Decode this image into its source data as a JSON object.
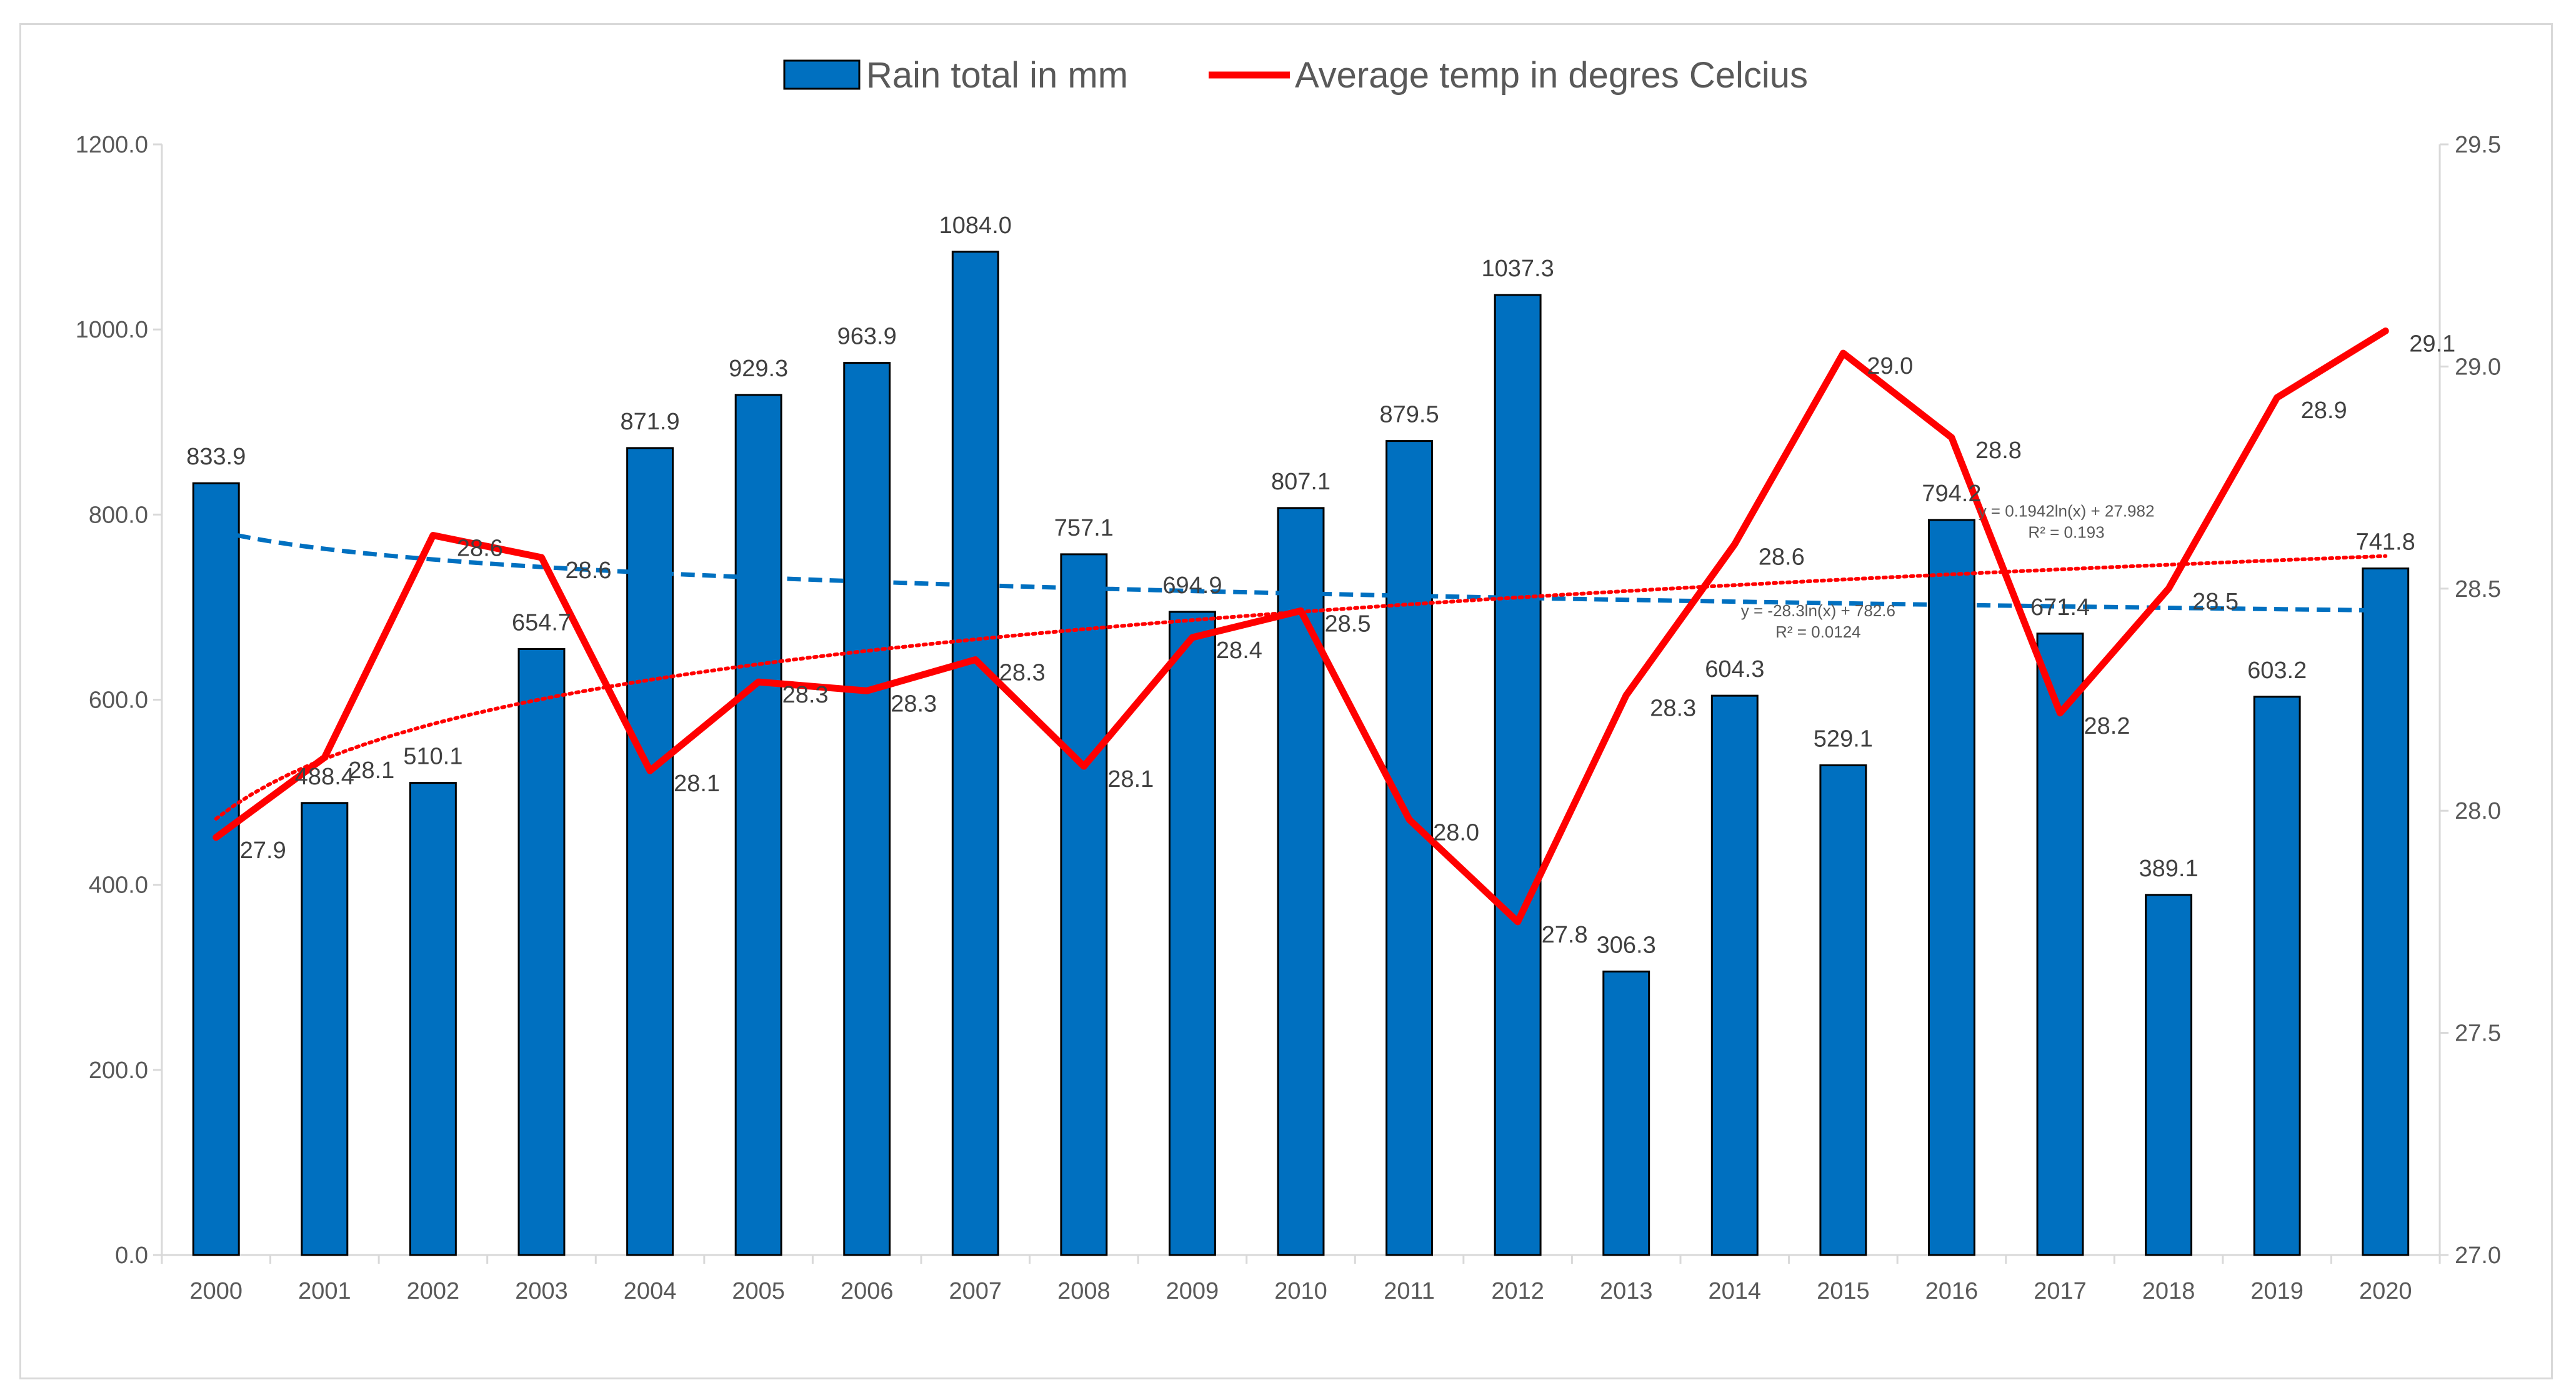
{
  "chart_data": {
    "type": "bar+line",
    "title": "",
    "categories": [
      "2000",
      "2001",
      "2002",
      "2003",
      "2004",
      "2005",
      "2006",
      "2007",
      "2008",
      "2009",
      "2010",
      "2011",
      "2012",
      "2013",
      "2014",
      "2015",
      "2016",
      "2017",
      "2018",
      "2019",
      "2020"
    ],
    "series": [
      {
        "name": "Rain total in mm",
        "type": "bar",
        "axis": "left",
        "color": "#0070c0",
        "values": [
          833.9,
          488.4,
          510.1,
          654.7,
          871.9,
          929.3,
          963.9,
          1084.0,
          757.1,
          694.9,
          807.1,
          879.5,
          1037.3,
          306.3,
          604.3,
          529.1,
          794.2,
          671.4,
          389.1,
          603.2,
          741.8
        ],
        "labels": [
          "833.9",
          "488.4",
          "510.1",
          "654.7",
          "871.9",
          "929.3",
          "963.9",
          "1084.0",
          "757.1",
          "694.9",
          "807.1",
          "879.5",
          "1037.3",
          "306.3",
          "604.3",
          "529.1",
          "794.2",
          "671.4",
          "389.1",
          "603.2",
          "741.8"
        ]
      },
      {
        "name": "Average temp in degres Celcius",
        "type": "line",
        "axis": "right",
        "color": "#ff0000",
        "values": [
          27.94,
          28.12,
          28.62,
          28.57,
          28.09,
          28.29,
          28.27,
          28.34,
          28.1,
          28.39,
          28.45,
          27.98,
          27.75,
          28.26,
          28.6,
          29.03,
          28.84,
          28.22,
          28.5,
          28.93,
          29.08
        ],
        "labels": [
          "27.9",
          "28.1",
          "28.6",
          "28.6",
          "28.1",
          "28.3",
          "28.3",
          "28.3",
          "28.1",
          "28.4",
          "28.5",
          "28.0",
          "27.8",
          "28.3",
          "28.6",
          "29.0",
          "28.8",
          "28.2",
          "28.5",
          "28.9",
          "29.1"
        ]
      }
    ],
    "trendlines": [
      {
        "series": "Rain total in mm",
        "kind": "log",
        "a": -28.3,
        "b": 782.6,
        "color": "#0070c0",
        "equation": "y = -28.3ln(x) + 782.6",
        "r2": "R² = 0.0124"
      },
      {
        "series": "Average temp in degres Celcius",
        "kind": "log",
        "a": 0.1942,
        "b": 27.982,
        "color": "#ff0000",
        "equation": "y = 0.1942ln(x) + 27.982",
        "r2": "R² = 0.193"
      }
    ],
    "y_left": {
      "min": 0,
      "max": 1200,
      "step": 200,
      "ticks": [
        "0.0",
        "200.0",
        "400.0",
        "600.0",
        "800.0",
        "1000.0",
        "1200.0"
      ]
    },
    "y_right": {
      "min": 27.0,
      "max": 29.5,
      "step": 0.5,
      "ticks": [
        "27.0",
        "27.5",
        "28.0",
        "28.5",
        "29.0",
        "29.5"
      ]
    },
    "legend": {
      "position": "top"
    },
    "grid": false
  }
}
